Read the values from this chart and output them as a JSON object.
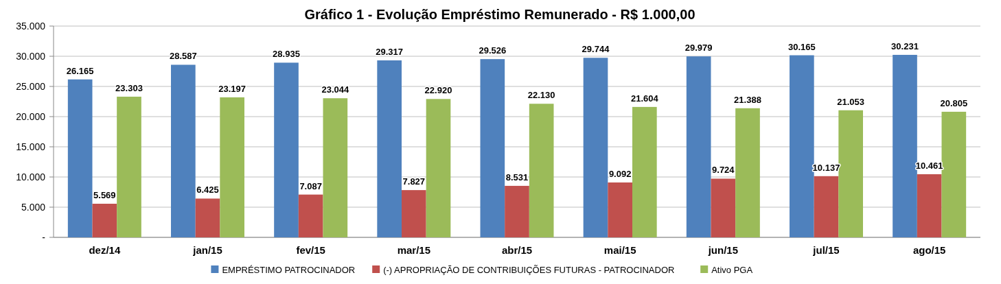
{
  "chart_data": {
    "type": "bar",
    "title": "Gráfico 1 - Evolução Empréstimo Remunerado - R$ 1.000,00",
    "categories": [
      "dez/14",
      "jan/15",
      "fev/15",
      "mar/15",
      "abr/15",
      "mai/15",
      "jun/15",
      "jul/15",
      "ago/15"
    ],
    "series": [
      {
        "name": "EMPRÉSTIMO PATROCINADOR",
        "color": "#4f81bd",
        "values": [
          26165,
          28587,
          28935,
          29317,
          29526,
          29744,
          29979,
          30165,
          30231
        ],
        "value_labels": [
          "26.165",
          "28.587",
          "28.935",
          "29.317",
          "29.526",
          "29.744",
          "29.979",
          "30.165",
          "30.231"
        ]
      },
      {
        "name": "(-) APROPRIAÇÃO DE CONTRIBUIÇÕES FUTURAS - PATROCINADOR",
        "color": "#c0504d",
        "values": [
          5569,
          6425,
          7087,
          7827,
          8531,
          9092,
          9724,
          10137,
          10461
        ],
        "value_labels": [
          "5.569",
          "6.425",
          "7.087",
          "7.827",
          "8.531",
          "9.092",
          "9.724",
          "10.137",
          "10.461"
        ]
      },
      {
        "name": "Ativo PGA",
        "color": "#9bbb59",
        "values": [
          23303,
          23197,
          23044,
          22920,
          22130,
          21604,
          21388,
          21053,
          20805
        ],
        "value_labels": [
          "23.303",
          "23.197",
          "23.044",
          "22.920",
          "22.130",
          "21.604",
          "21.388",
          "21.053",
          "20.805"
        ]
      }
    ],
    "ylim": [
      0,
      35000
    ],
    "yticks": [
      {
        "value": 0,
        "label": "-"
      },
      {
        "value": 5000,
        "label": "5.000"
      },
      {
        "value": 10000,
        "label": "10.000"
      },
      {
        "value": 15000,
        "label": "15.000"
      },
      {
        "value": 20000,
        "label": "20.000"
      },
      {
        "value": 25000,
        "label": "25.000"
      },
      {
        "value": 30000,
        "label": "30.000"
      },
      {
        "value": 35000,
        "label": "35.000"
      }
    ],
    "grid": "y",
    "legend": "bottom"
  }
}
